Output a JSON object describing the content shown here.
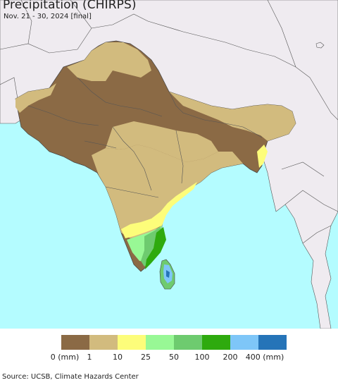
{
  "map": {
    "title": "Precipitation (CHIRPS)",
    "subtitle": "Nov. 21 - 30, 2024 [final]",
    "colors": {
      "ocean": "#b4fcff",
      "land_outside": "#efebf0",
      "border": "#555555"
    }
  },
  "legend": {
    "ticks": [
      "0 (mm)",
      "1",
      "10",
      "25",
      "50",
      "100",
      "200",
      "400 (mm)"
    ],
    "colors": [
      "#8b6a45",
      "#d2bb7e",
      "#fdfd7a",
      "#98f895",
      "#6ecb6f",
      "#2eaa0e",
      "#7ec6f8",
      "#2574b8"
    ]
  },
  "footer": {
    "source": "Source: UCSB, Climate Hazards Center"
  }
}
